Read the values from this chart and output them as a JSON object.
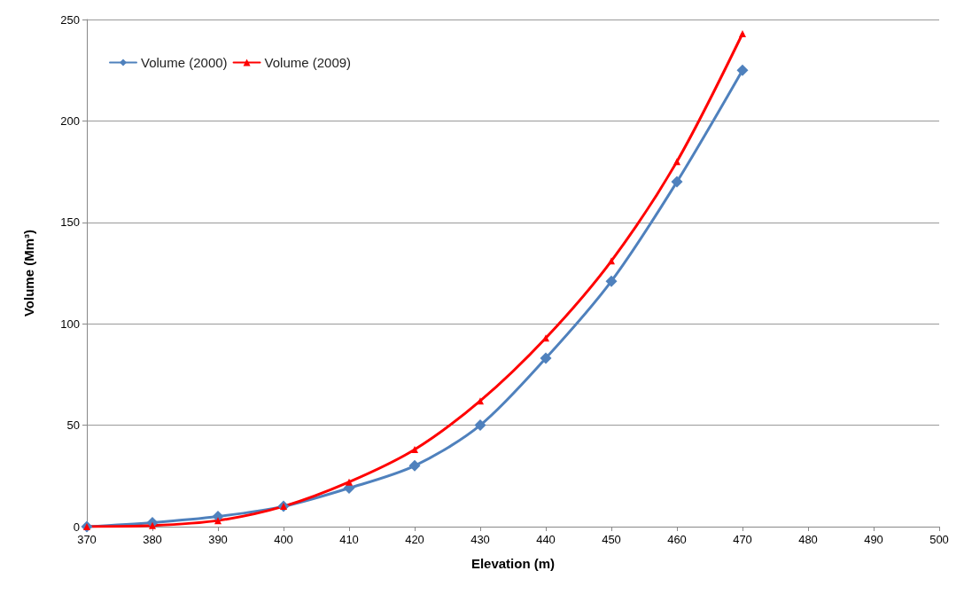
{
  "chart_data": {
    "type": "line",
    "xlabel": "Elevation (m)",
    "ylabel": "Volume (Mm³)",
    "x": [
      370,
      380,
      390,
      400,
      410,
      420,
      430,
      440,
      450,
      460,
      470
    ],
    "series": [
      {
        "name": "Volume (2000)",
        "color": "#4f81bd",
        "marker": "diamond",
        "values": [
          0,
          2,
          5,
          10,
          19,
          30,
          50,
          83,
          121,
          170,
          225
        ]
      },
      {
        "name": "Volume (2009)",
        "color": "#ff0000",
        "marker": "triangle",
        "values": [
          0,
          0.5,
          3,
          10,
          22,
          38,
          62,
          93,
          131,
          180,
          243
        ]
      }
    ],
    "xlim": [
      370,
      500
    ],
    "xticks": [
      370,
      380,
      390,
      400,
      410,
      420,
      430,
      440,
      450,
      460,
      470,
      480,
      490,
      500
    ],
    "ylim": [
      0,
      250
    ],
    "yticks": [
      0,
      50,
      100,
      150,
      200,
      250
    ],
    "grid": "y",
    "legend": "top left",
    "line_style": "solid"
  }
}
